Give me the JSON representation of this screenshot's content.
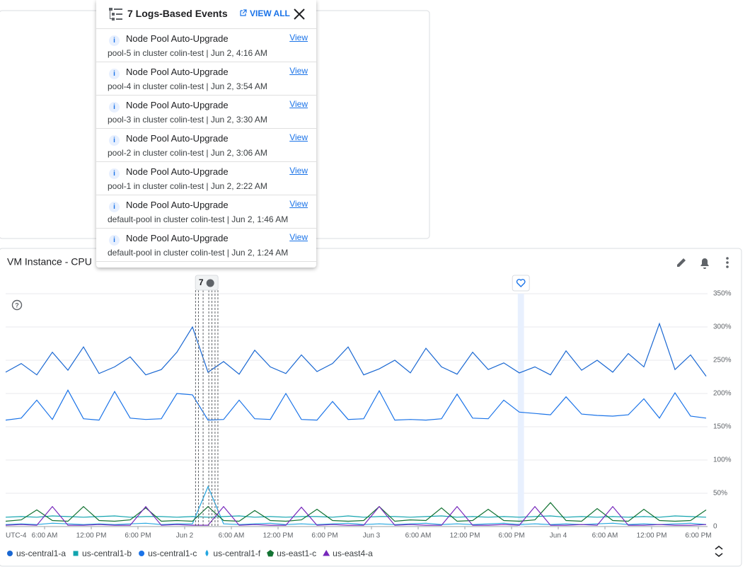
{
  "events_popup": {
    "title": "7 Logs-Based Events",
    "view_all": "VIEW ALL",
    "items": [
      {
        "name": "Node Pool Auto-Upgrade",
        "detail": "pool-5 in cluster colin-test | Jun 2, 4:16 AM",
        "action": "View"
      },
      {
        "name": "Node Pool Auto-Upgrade",
        "detail": "pool-4 in cluster colin-test | Jun 2, 3:54 AM",
        "action": "View"
      },
      {
        "name": "Node Pool Auto-Upgrade",
        "detail": "pool-3 in cluster colin-test | Jun 2, 3:30 AM",
        "action": "View"
      },
      {
        "name": "Node Pool Auto-Upgrade",
        "detail": "pool-2 in cluster colin-test | Jun 2, 3:06 AM",
        "action": "View"
      },
      {
        "name": "Node Pool Auto-Upgrade",
        "detail": "pool-1 in cluster colin-test | Jun 2, 2:22 AM",
        "action": "View"
      },
      {
        "name": "Node Pool Auto-Upgrade",
        "detail": "default-pool in cluster colin-test | Jun 2, 1:46 AM",
        "action": "View"
      },
      {
        "name": "Node Pool Auto-Upgrade",
        "detail": "default-pool in cluster colin-test | Jun 2, 1:24 AM",
        "action": "View"
      }
    ]
  },
  "chart_data": {
    "type": "line",
    "title": "VM Instance - CPU",
    "timezone": "UTC-4",
    "badge": "7",
    "grid": true,
    "x": [
      1,
      3,
      5,
      7,
      9,
      11,
      13,
      15,
      17,
      19,
      21,
      23,
      25,
      27,
      29,
      31,
      33,
      35,
      37,
      39,
      41,
      43,
      45,
      47,
      49,
      51,
      53,
      55,
      57,
      59,
      61,
      63,
      65,
      67,
      69,
      71,
      73,
      75,
      77,
      79,
      81,
      83,
      85,
      87,
      89,
      91
    ],
    "xlim": [
      1,
      91
    ],
    "xticks": [
      {
        "value": 6,
        "label": "6:00 AM"
      },
      {
        "value": 12,
        "label": "12:00 PM"
      },
      {
        "value": 18,
        "label": "6:00 PM"
      },
      {
        "value": 24,
        "label": "Jun 2"
      },
      {
        "value": 30,
        "label": "6:00 AM"
      },
      {
        "value": 36,
        "label": "12:00 PM"
      },
      {
        "value": 42,
        "label": "6:00 PM"
      },
      {
        "value": 48,
        "label": "Jun 3"
      },
      {
        "value": 54,
        "label": "6:00 AM"
      },
      {
        "value": 60,
        "label": "12:00 PM"
      },
      {
        "value": 66,
        "label": "6:00 PM"
      },
      {
        "value": 72,
        "label": "Jun 4"
      },
      {
        "value": 78,
        "label": "6:00 AM"
      },
      {
        "value": 84,
        "label": "12:00 PM"
      },
      {
        "value": 90,
        "label": "6:00 PM"
      }
    ],
    "ylim": [
      0,
      350
    ],
    "yticks": [
      0,
      {
        "value": 50,
        "label": "50%"
      },
      {
        "value": 100,
        "label": "100%"
      },
      {
        "value": 150,
        "label": "150%"
      },
      {
        "value": 200,
        "label": "200%"
      },
      {
        "value": 250,
        "label": "250%"
      },
      {
        "value": 300,
        "label": "300%"
      },
      {
        "value": 350,
        "label": "350%"
      }
    ],
    "events_x": [
      28.27,
      27.9,
      27.5,
      27.1,
      26.37,
      25.77,
      25.4
    ],
    "highlight_x": [
      66.8,
      67.6
    ],
    "series": [
      {
        "name": "us-central1-a",
        "color": "#1967d2",
        "marker": "circle",
        "values": [
          232,
          245,
          228,
          262,
          235,
          270,
          230,
          240,
          255,
          228,
          236,
          262,
          300,
          232,
          248,
          229,
          265,
          240,
          230,
          258,
          233,
          245,
          270,
          228,
          237,
          250,
          231,
          268,
          240,
          229,
          262,
          236,
          246,
          231,
          240,
          228,
          264,
          235,
          250,
          232,
          260,
          240,
          305,
          236,
          258,
          226
        ]
      },
      {
        "name": "us-central1-b",
        "color": "#12a4af",
        "marker": "square",
        "values": [
          14,
          15,
          14,
          16,
          15,
          14,
          15,
          16,
          14,
          15,
          15,
          14,
          15,
          14,
          15,
          16,
          14,
          15,
          14,
          15,
          15,
          14,
          16,
          14,
          15,
          15,
          14,
          15,
          16,
          14,
          15,
          14,
          15,
          14,
          15,
          16,
          14,
          15,
          14,
          15,
          14,
          15,
          14,
          16,
          15,
          14
        ]
      },
      {
        "name": "us-central1-c",
        "color": "#1a73e8",
        "marker": "circle",
        "values": [
          160,
          163,
          190,
          161,
          205,
          162,
          160,
          203,
          163,
          161,
          162,
          200,
          198,
          160,
          161,
          190,
          162,
          161,
          200,
          161,
          160,
          188,
          161,
          162,
          204,
          160,
          161,
          160,
          162,
          199,
          163,
          162,
          190,
          172,
          170,
          168,
          195,
          169,
          167,
          166,
          168,
          192,
          163,
          201,
          166,
          163
        ]
      },
      {
        "name": "us-central1-f",
        "color": "#24a6e0",
        "marker": "drop",
        "values": [
          3,
          4,
          3,
          5,
          4,
          3,
          4,
          3,
          4,
          5,
          3,
          4,
          4,
          60,
          4,
          3,
          4,
          5,
          3,
          4,
          3,
          4,
          5,
          3,
          4,
          3,
          4,
          5,
          3,
          4,
          3,
          4,
          5,
          3,
          4,
          3,
          4,
          3,
          4,
          5,
          3,
          4,
          3,
          4,
          5,
          3
        ]
      },
      {
        "name": "us-east1-c",
        "color": "#137333",
        "marker": "pentagon",
        "values": [
          8,
          10,
          25,
          9,
          8,
          30,
          9,
          8,
          10,
          28,
          8,
          9,
          8,
          30,
          9,
          8,
          24,
          9,
          8,
          10,
          26,
          9,
          8,
          9,
          30,
          8,
          10,
          9,
          28,
          8,
          9,
          26,
          9,
          8,
          10,
          36,
          9,
          8,
          27,
          9,
          8,
          26,
          9,
          8,
          9,
          25
        ]
      },
      {
        "name": "us-east4-a",
        "color": "#7627bb",
        "marker": "triangle",
        "values": [
          2,
          3,
          2,
          30,
          2,
          2,
          3,
          2,
          2,
          30,
          2,
          3,
          2,
          2,
          30,
          2,
          3,
          2,
          2,
          29,
          2,
          3,
          2,
          2,
          30,
          2,
          3,
          2,
          2,
          30,
          2,
          2,
          3,
          2,
          30,
          2,
          2,
          3,
          2,
          30,
          2,
          2,
          3,
          2,
          2,
          3
        ]
      }
    ]
  }
}
